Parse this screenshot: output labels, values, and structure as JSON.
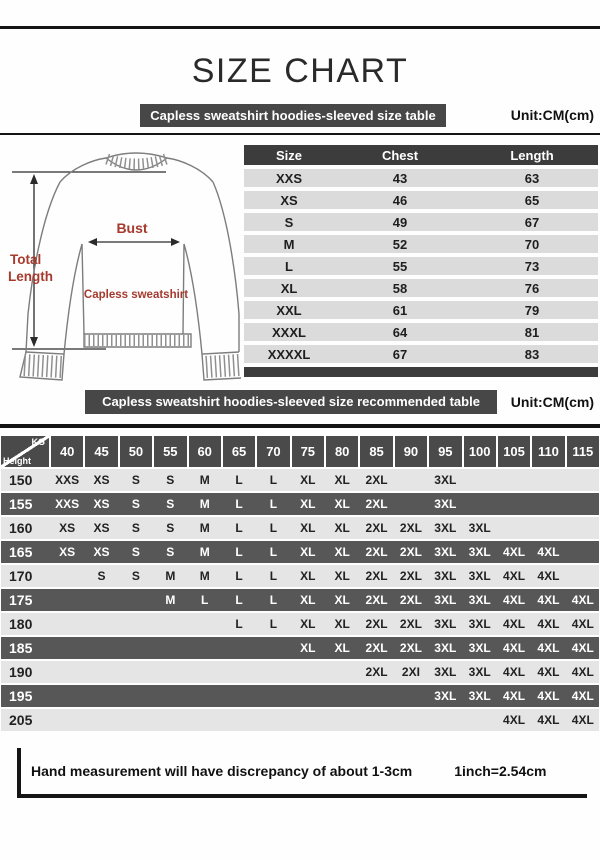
{
  "page": {
    "title": "SIZE CHART",
    "note": {
      "text": "Hand measurement will have discrepancy of about  1-3cm",
      "conversion": "1inch=2.54cm"
    }
  },
  "colors": {
    "banner_bg": "#474747",
    "table1_header_bg": "#3c3c3c",
    "table1_row_bg": "#dbdbdb",
    "table2_row_light": "#e5e5e5",
    "table2_row_dark": "#575757",
    "accent_red": "#a63a2e",
    "rule": "#141414"
  },
  "diagram": {
    "labels": {
      "bust": "Bust",
      "total_length_line1": "Total",
      "total_length_line2": "Length",
      "product": "Capless sweatshirt"
    }
  },
  "size_table": {
    "banner": "Capless sweatshirt hoodies-sleeved size  table",
    "unit": "Unit:CM(cm)",
    "columns": [
      "Size",
      "Chest",
      "Length"
    ],
    "rows": [
      [
        "XXS",
        "43",
        "63"
      ],
      [
        "XS",
        "46",
        "65"
      ],
      [
        "S",
        "49",
        "67"
      ],
      [
        "M",
        "52",
        "70"
      ],
      [
        "L",
        "55",
        "73"
      ],
      [
        "XL",
        "58",
        "76"
      ],
      [
        "XXL",
        "61",
        "79"
      ],
      [
        "XXXL",
        "64",
        "81"
      ],
      [
        "XXXXL",
        "67",
        "83"
      ]
    ]
  },
  "recommended_table": {
    "banner": "Capless sweatshirt hoodies-sleeved size recommended table",
    "unit": "Unit:CM(cm)",
    "corner": {
      "top": "KG",
      "bottom": "Height"
    },
    "weights": [
      "40",
      "45",
      "50",
      "55",
      "60",
      "65",
      "70",
      "75",
      "80",
      "85",
      "90",
      "95",
      "100",
      "105",
      "110",
      "115"
    ],
    "rows": [
      {
        "height": "150",
        "cells": [
          "XXS",
          "XS",
          "S",
          "S",
          "M",
          "L",
          "L",
          "XL",
          "XL",
          "2XL",
          "",
          "3XL",
          "",
          "",
          "",
          ""
        ]
      },
      {
        "height": "155",
        "cells": [
          "XXS",
          "XS",
          "S",
          "S",
          "M",
          "L",
          "L",
          "XL",
          "XL",
          "2XL",
          "",
          "3XL",
          "",
          "",
          "",
          ""
        ]
      },
      {
        "height": "160",
        "cells": [
          "XS",
          "XS",
          "S",
          "S",
          "M",
          "L",
          "L",
          "XL",
          "XL",
          "2XL",
          "2XL",
          "3XL",
          "3XL",
          "",
          "",
          ""
        ]
      },
      {
        "height": "165",
        "cells": [
          "XS",
          "XS",
          "S",
          "S",
          "M",
          "L",
          "L",
          "XL",
          "XL",
          "2XL",
          "2XL",
          "3XL",
          "3XL",
          "4XL",
          "4XL",
          ""
        ]
      },
      {
        "height": "170",
        "cells": [
          "",
          "S",
          "S",
          "M",
          "M",
          "L",
          "L",
          "XL",
          "XL",
          "2XL",
          "2XL",
          "3XL",
          "3XL",
          "4XL",
          "4XL",
          ""
        ]
      },
      {
        "height": "175",
        "cells": [
          "",
          "",
          "",
          "M",
          "L",
          "L",
          "L",
          "XL",
          "XL",
          "2XL",
          "2XL",
          "3XL",
          "3XL",
          "4XL",
          "4XL",
          "4XL"
        ]
      },
      {
        "height": "180",
        "cells": [
          "",
          "",
          "",
          "",
          "",
          "L",
          "L",
          "XL",
          "XL",
          "2XL",
          "2XL",
          "3XL",
          "3XL",
          "4XL",
          "4XL",
          "4XL"
        ]
      },
      {
        "height": "185",
        "cells": [
          "",
          "",
          "",
          "",
          "",
          "",
          "",
          "XL",
          "XL",
          "2XL",
          "2XL",
          "3XL",
          "3XL",
          "4XL",
          "4XL",
          "4XL"
        ]
      },
      {
        "height": "190",
        "cells": [
          "",
          "",
          "",
          "",
          "",
          "",
          "",
          "",
          "",
          "2XL",
          "2XI",
          "3XL",
          "3XL",
          "4XL",
          "4XL",
          "4XL"
        ]
      },
      {
        "height": "195",
        "cells": [
          "",
          "",
          "",
          "",
          "",
          "",
          "",
          "",
          "",
          "",
          "",
          "3XL",
          "3XL",
          "4XL",
          "4XL",
          "4XL"
        ]
      },
      {
        "height": "205",
        "cells": [
          "",
          "",
          "",
          "",
          "",
          "",
          "",
          "",
          "",
          "",
          "",
          "",
          "",
          "4XL",
          "4XL",
          "4XL"
        ]
      }
    ]
  }
}
